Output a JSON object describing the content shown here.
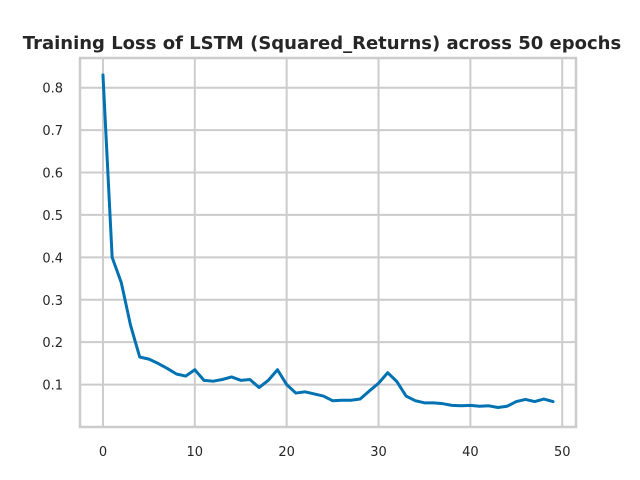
{
  "chart_data": {
    "type": "line",
    "title": "Training Loss of LSTM (Squared_Returns) across 50 epochs",
    "xlabel": "",
    "ylabel": "",
    "xlim": [
      -2.5,
      51.5
    ],
    "ylim": [
      0.0,
      0.87
    ],
    "xticks": [
      0,
      10,
      20,
      30,
      40,
      50
    ],
    "yticks": [
      0.1,
      0.2,
      0.3,
      0.4,
      0.5,
      0.6,
      0.7,
      0.8
    ],
    "grid": true,
    "legend": "none",
    "series": [
      {
        "color": "#0072b2",
        "x": [
          0,
          1,
          2,
          3,
          4,
          5,
          6,
          7,
          8,
          9,
          10,
          11,
          12,
          13,
          14,
          15,
          16,
          17,
          18,
          19,
          20,
          21,
          22,
          23,
          24,
          25,
          26,
          27,
          28,
          29,
          30,
          31,
          32,
          33,
          34,
          35,
          36,
          37,
          38,
          39,
          40,
          41,
          42,
          43,
          44,
          45,
          46,
          47,
          48,
          49
        ],
        "y": [
          0.83,
          0.4,
          0.34,
          0.24,
          0.165,
          0.16,
          0.15,
          0.138,
          0.125,
          0.12,
          0.135,
          0.11,
          0.108,
          0.112,
          0.118,
          0.11,
          0.112,
          0.093,
          0.11,
          0.135,
          0.1,
          0.08,
          0.083,
          0.078,
          0.073,
          0.062,
          0.063,
          0.063,
          0.066,
          0.085,
          0.103,
          0.128,
          0.107,
          0.073,
          0.062,
          0.057,
          0.057,
          0.055,
          0.051,
          0.05,
          0.051,
          0.049,
          0.05,
          0.046,
          0.049,
          0.06,
          0.065,
          0.06,
          0.066,
          0.06
        ]
      }
    ]
  }
}
